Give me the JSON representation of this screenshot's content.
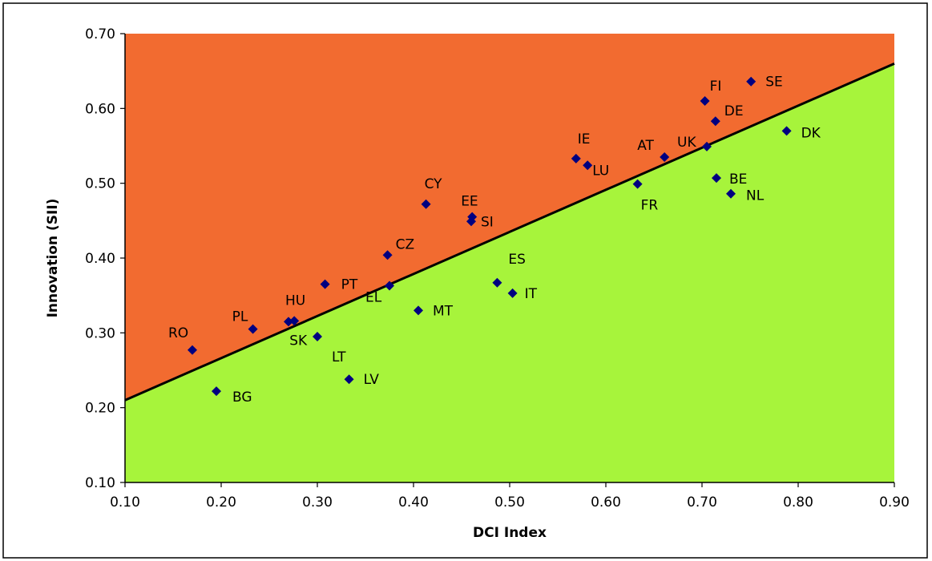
{
  "chart_data": {
    "type": "scatter",
    "title": "",
    "xlabel": "DCI Index",
    "ylabel": "Innovation (SII)",
    "xlim": [
      0.1,
      0.9
    ],
    "ylim": [
      0.1,
      0.7
    ],
    "xticks": [
      "0.10",
      "0.20",
      "0.30",
      "0.40",
      "0.50",
      "0.60",
      "0.70",
      "0.80",
      "0.90"
    ],
    "yticks": [
      "0.10",
      "0.20",
      "0.30",
      "0.40",
      "0.50",
      "0.60",
      "0.70"
    ],
    "grid": false,
    "legend": "none",
    "colors": {
      "above_line_region": "#f26b30",
      "below_line_region": "#a7f43b",
      "marker": "#000080",
      "trend_line": "#000000"
    },
    "trend_line": {
      "x": [
        0.1,
        0.9
      ],
      "y": [
        0.21,
        0.66
      ]
    },
    "points": [
      {
        "label": "RO",
        "x": 0.17,
        "y": 0.277
      },
      {
        "label": "BG",
        "x": 0.195,
        "y": 0.222
      },
      {
        "label": "PL",
        "x": 0.233,
        "y": 0.305
      },
      {
        "label": "HU",
        "x": 0.27,
        "y": 0.315
      },
      {
        "label": "SK",
        "x": 0.276,
        "y": 0.316
      },
      {
        "label": "LT",
        "x": 0.3,
        "y": 0.295
      },
      {
        "label": "PT",
        "x": 0.308,
        "y": 0.365
      },
      {
        "label": "LV",
        "x": 0.333,
        "y": 0.238
      },
      {
        "label": "CZ",
        "x": 0.373,
        "y": 0.404
      },
      {
        "label": "EL",
        "x": 0.375,
        "y": 0.363
      },
      {
        "label": "MT",
        "x": 0.405,
        "y": 0.33
      },
      {
        "label": "CY",
        "x": 0.413,
        "y": 0.472
      },
      {
        "label": "EE",
        "x": 0.461,
        "y": 0.455
      },
      {
        "label": "SI",
        "x": 0.46,
        "y": 0.449
      },
      {
        "label": "ES",
        "x": 0.487,
        "y": 0.367
      },
      {
        "label": "IT",
        "x": 0.503,
        "y": 0.353
      },
      {
        "label": "IE",
        "x": 0.569,
        "y": 0.533
      },
      {
        "label": "LU",
        "x": 0.581,
        "y": 0.524
      },
      {
        "label": "FR",
        "x": 0.633,
        "y": 0.499
      },
      {
        "label": "AT",
        "x": 0.661,
        "y": 0.535
      },
      {
        "label": "UK",
        "x": 0.705,
        "y": 0.549
      },
      {
        "label": "FI",
        "x": 0.703,
        "y": 0.61
      },
      {
        "label": "DE",
        "x": 0.714,
        "y": 0.583
      },
      {
        "label": "BE",
        "x": 0.715,
        "y": 0.507
      },
      {
        "label": "NL",
        "x": 0.73,
        "y": 0.486
      },
      {
        "label": "SE",
        "x": 0.751,
        "y": 0.636
      },
      {
        "label": "DK",
        "x": 0.788,
        "y": 0.57
      }
    ]
  }
}
